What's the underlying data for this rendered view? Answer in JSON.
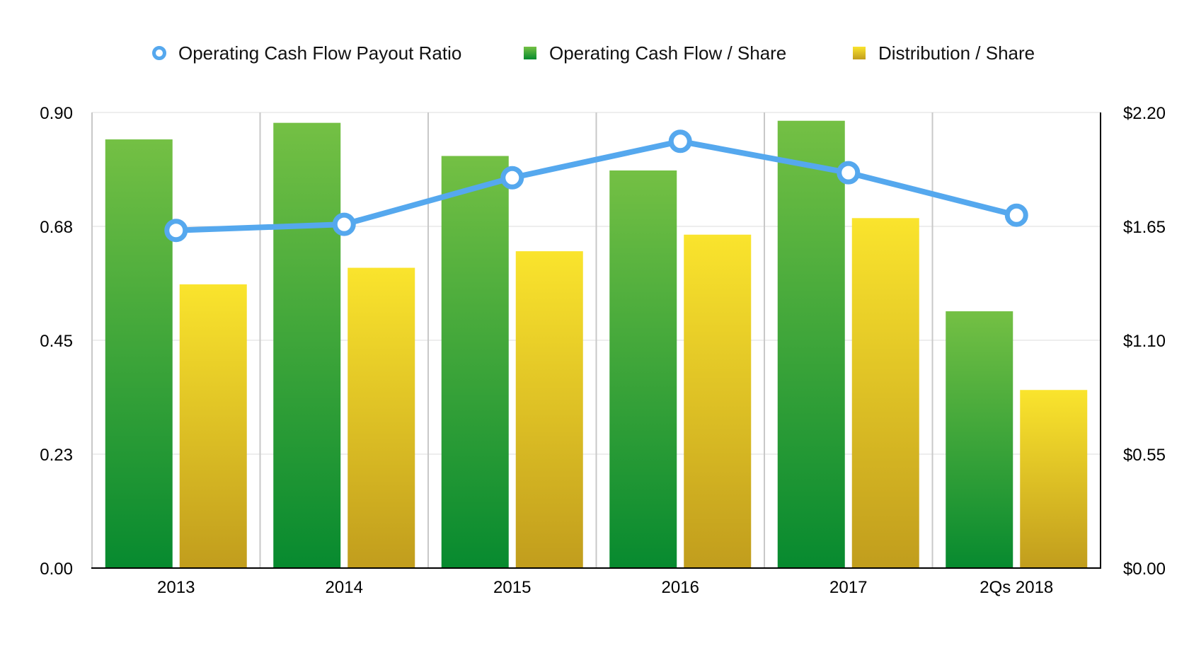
{
  "chart_data": {
    "type": "bar",
    "categories": [
      "2013",
      "2014",
      "2015",
      "2016",
      "2017",
      "2Qs 2018"
    ],
    "y_left": {
      "ticks": [
        "0.00",
        "0.23",
        "0.45",
        "0.68",
        "0.90"
      ],
      "range": [
        0,
        0.9
      ]
    },
    "y_right": {
      "ticks": [
        "$0.00",
        "$0.55",
        "$1.10",
        "$1.65",
        "$2.20"
      ],
      "range": [
        0,
        2.2
      ]
    },
    "grid": true,
    "legend_position": "top",
    "series": [
      {
        "name": "Operating Cash Flow Payout Ratio",
        "kind": "line",
        "axis": "left",
        "color": "#55a8ee",
        "values": [
          0.667,
          0.679,
          0.771,
          0.843,
          0.781,
          0.697
        ]
      },
      {
        "name": "Operating Cash Flow / Share",
        "kind": "bar",
        "axis": "right",
        "color": "#3aa83a",
        "values": [
          2.07,
          2.15,
          1.99,
          1.92,
          2.16,
          1.24
        ]
      },
      {
        "name": "Distribution / Share",
        "kind": "bar",
        "axis": "right",
        "color": "#e8c82a",
        "values": [
          1.37,
          1.45,
          1.53,
          1.61,
          1.69,
          0.86
        ]
      }
    ]
  }
}
